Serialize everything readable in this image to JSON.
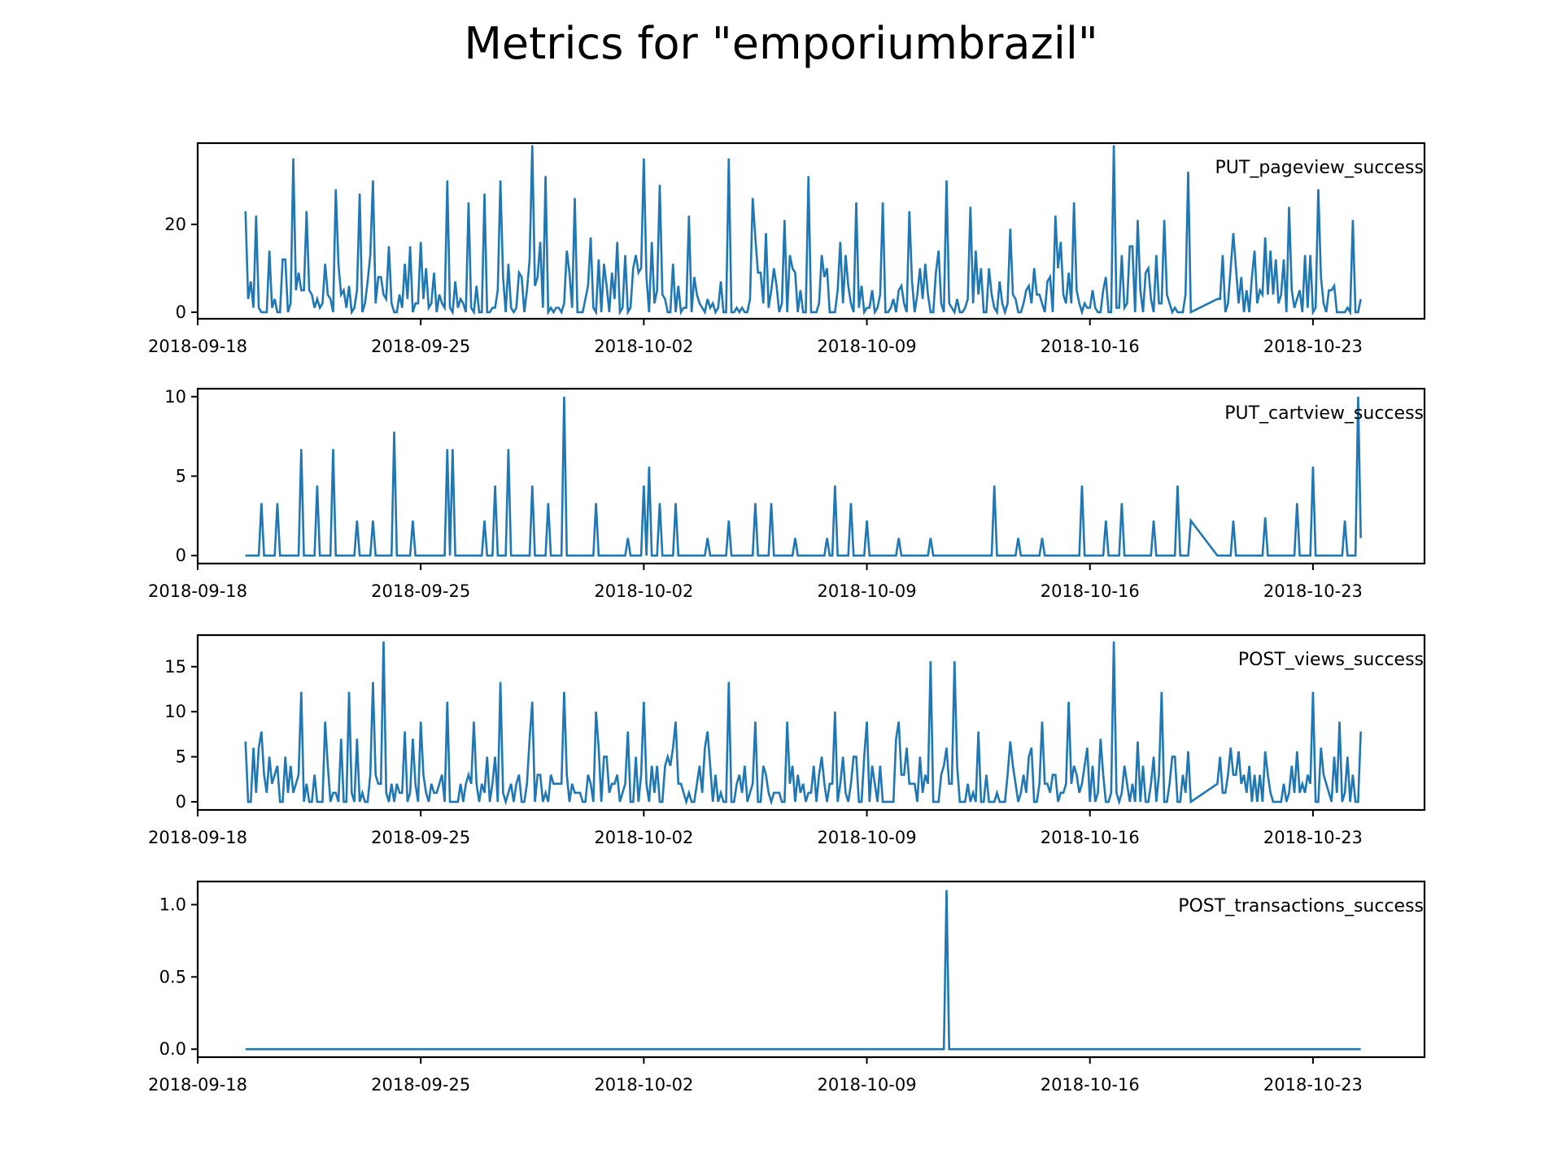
{
  "figure_title": "Metrics for \"emporiumbrazil\"",
  "colors": {
    "line": "#1f77b4",
    "axes": "#000000",
    "background": "#ffffff"
  },
  "chart_data": [
    {
      "type": "line",
      "series_label": "PUT_pageview_success",
      "x_start": "2018-09-19T12:00",
      "x_end": "2018-10-24T12:00",
      "gap": [
        "2018-10-19T04:00",
        "2018-10-20T00:00"
      ],
      "xlim": [
        "2018-09-18T00:00",
        "2018-10-26T12:00"
      ],
      "ylim": [
        -1.5,
        38.5
      ],
      "yticks": [
        0,
        20
      ],
      "xticks": [
        "2018-09-18",
        "2018-09-25",
        "2018-10-02",
        "2018-10-09",
        "2018-10-16",
        "2018-10-23"
      ],
      "pattern": "dense",
      "baseline": 0,
      "typical_max": 12,
      "peaks": [
        [
          "2018-09-19T12:00",
          23
        ],
        [
          "2018-09-19T20:00",
          22
        ],
        [
          "2018-09-21T00:00",
          35
        ],
        [
          "2018-09-21T10:00",
          23
        ],
        [
          "2018-09-22T08:00",
          28
        ],
        [
          "2018-09-23T02:00",
          27
        ],
        [
          "2018-09-23T12:00",
          30
        ],
        [
          "2018-09-24T16:00",
          15
        ],
        [
          "2018-09-25T00:00",
          16
        ],
        [
          "2018-09-25T20:00",
          30
        ],
        [
          "2018-09-26T12:00",
          25
        ],
        [
          "2018-09-27T00:00",
          27
        ],
        [
          "2018-09-27T12:00",
          30
        ],
        [
          "2018-09-28T12:00",
          38
        ],
        [
          "2018-09-28T22:00",
          31
        ],
        [
          "2018-09-29T20:00",
          26
        ],
        [
          "2018-10-01T04:00",
          16
        ],
        [
          "2018-10-02T00:00",
          35
        ],
        [
          "2018-10-02T12:00",
          29
        ],
        [
          "2018-10-03T10:00",
          22
        ],
        [
          "2018-10-04T16:00",
          35
        ],
        [
          "2018-10-05T10:00",
          26
        ],
        [
          "2018-10-06T10:00",
          21
        ],
        [
          "2018-10-07T04:00",
          31
        ],
        [
          "2018-10-08T16:00",
          25
        ],
        [
          "2018-10-09T12:00",
          25
        ],
        [
          "2018-10-10T08:00",
          23
        ],
        [
          "2018-10-11T12:00",
          30
        ],
        [
          "2018-10-12T06:00",
          24
        ],
        [
          "2018-10-13T12:00",
          19
        ],
        [
          "2018-10-14T22:00",
          22
        ],
        [
          "2018-10-15T12:00",
          25
        ],
        [
          "2018-10-16T18:00",
          38
        ],
        [
          "2018-10-17T12:00",
          21
        ],
        [
          "2018-10-18T08:00",
          21
        ],
        [
          "2018-10-19T02:00",
          32
        ],
        [
          "2018-10-20T12:00",
          18
        ],
        [
          "2018-10-21T12:00",
          17
        ],
        [
          "2018-10-22T06:00",
          24
        ],
        [
          "2018-10-23T04:00",
          28
        ],
        [
          "2018-10-24T06:00",
          21
        ]
      ]
    },
    {
      "type": "line",
      "series_label": "PUT_cartview_success",
      "x_start": "2018-09-19T12:00",
      "x_end": "2018-10-24T12:00",
      "gap": [
        "2018-10-19T04:00",
        "2018-10-20T00:00"
      ],
      "xlim": [
        "2018-09-18T00:00",
        "2018-10-26T12:00"
      ],
      "ylim": [
        -0.5,
        10.5
      ],
      "yticks": [
        0,
        5,
        10
      ],
      "xticks": [
        "2018-09-18",
        "2018-09-25",
        "2018-10-02",
        "2018-10-09",
        "2018-10-16",
        "2018-10-23"
      ],
      "pattern": "spikes",
      "baseline": 0,
      "peaks": [
        [
          "2018-09-20T00:00",
          3.3
        ],
        [
          "2018-09-20T12:00",
          3.3
        ],
        [
          "2018-09-21T06:00",
          6.7
        ],
        [
          "2018-09-21T18:00",
          4.4
        ],
        [
          "2018-09-22T06:00",
          6.7
        ],
        [
          "2018-09-23T00:00",
          2.2
        ],
        [
          "2018-09-23T12:00",
          2.2
        ],
        [
          "2018-09-24T04:00",
          7.8
        ],
        [
          "2018-09-24T18:00",
          2.2
        ],
        [
          "2018-09-25T20:00",
          6.7
        ],
        [
          "2018-09-26T00:00",
          6.7
        ],
        [
          "2018-09-27T00:00",
          2.2
        ],
        [
          "2018-09-27T08:00",
          4.4
        ],
        [
          "2018-09-27T18:00",
          6.7
        ],
        [
          "2018-09-28T12:00",
          4.4
        ],
        [
          "2018-09-29T00:00",
          3.3
        ],
        [
          "2018-09-29T12:00",
          10
        ],
        [
          "2018-09-30T12:00",
          3.3
        ],
        [
          "2018-10-01T12:00",
          1.1
        ],
        [
          "2018-10-02T00:00",
          4.4
        ],
        [
          "2018-10-02T04:00",
          5.6
        ],
        [
          "2018-10-02T12:00",
          3.3
        ],
        [
          "2018-10-03T00:00",
          3.3
        ],
        [
          "2018-10-04T00:00",
          1.1
        ],
        [
          "2018-10-04T16:00",
          2.2
        ],
        [
          "2018-10-05T12:00",
          3.3
        ],
        [
          "2018-10-06T00:00",
          3.3
        ],
        [
          "2018-10-06T18:00",
          1.1
        ],
        [
          "2018-10-07T18:00",
          1.1
        ],
        [
          "2018-10-08T00:00",
          4.4
        ],
        [
          "2018-10-08T12:00",
          3.3
        ],
        [
          "2018-10-09T00:00",
          2.2
        ],
        [
          "2018-10-10T00:00",
          1.1
        ],
        [
          "2018-10-11T00:00",
          1.1
        ],
        [
          "2018-10-13T00:00",
          4.4
        ],
        [
          "2018-10-13T18:00",
          1.1
        ],
        [
          "2018-10-14T12:00",
          1.1
        ],
        [
          "2018-10-15T18:00",
          4.4
        ],
        [
          "2018-10-16T12:00",
          2.2
        ],
        [
          "2018-10-17T00:00",
          3.3
        ],
        [
          "2018-10-18T00:00",
          2.2
        ],
        [
          "2018-10-18T18:00",
          4.4
        ],
        [
          "2018-10-19T04:00",
          2.2
        ],
        [
          "2018-10-20T12:00",
          2.2
        ],
        [
          "2018-10-21T12:00",
          2.4
        ],
        [
          "2018-10-22T12:00",
          3.3
        ],
        [
          "2018-10-23T00:00",
          5.6
        ],
        [
          "2018-10-24T00:00",
          2.2
        ],
        [
          "2018-10-24T10:00",
          10
        ],
        [
          "2018-10-24T12:00",
          1.1
        ]
      ]
    },
    {
      "type": "line",
      "series_label": "POST_views_success",
      "x_start": "2018-09-19T12:00",
      "x_end": "2018-10-24T12:00",
      "gap": [
        "2018-10-19T04:00",
        "2018-10-20T00:00"
      ],
      "xlim": [
        "2018-09-18T00:00",
        "2018-10-26T12:00"
      ],
      "ylim": [
        -0.9,
        18.5
      ],
      "yticks": [
        0,
        5,
        10,
        15
      ],
      "xticks": [
        "2018-09-18",
        "2018-09-25",
        "2018-10-02",
        "2018-10-09",
        "2018-10-16",
        "2018-10-23"
      ],
      "pattern": "dense",
      "baseline": 0,
      "typical_max": 5,
      "peaks": [
        [
          "2018-09-19T12:00",
          6.7
        ],
        [
          "2018-09-20T00:00",
          7.8
        ],
        [
          "2018-09-21T06:00",
          12.2
        ],
        [
          "2018-09-22T00:00",
          8.9
        ],
        [
          "2018-09-22T18:00",
          12.2
        ],
        [
          "2018-09-23T12:00",
          13.3
        ],
        [
          "2018-09-23T20:00",
          17.8
        ],
        [
          "2018-09-24T12:00",
          7.8
        ],
        [
          "2018-09-25T00:00",
          8.9
        ],
        [
          "2018-09-25T20:00",
          11.1
        ],
        [
          "2018-09-26T16:00",
          8.9
        ],
        [
          "2018-09-27T12:00",
          13.3
        ],
        [
          "2018-09-28T12:00",
          11.1
        ],
        [
          "2018-09-29T12:00",
          12.2
        ],
        [
          "2018-09-30T12:00",
          10
        ],
        [
          "2018-10-01T12:00",
          7.8
        ],
        [
          "2018-10-02T00:00",
          11.1
        ],
        [
          "2018-10-03T00:00",
          8.9
        ],
        [
          "2018-10-04T00:00",
          7.8
        ],
        [
          "2018-10-04T16:00",
          13.3
        ],
        [
          "2018-10-05T12:00",
          8.9
        ],
        [
          "2018-10-06T12:00",
          8.9
        ],
        [
          "2018-10-08T00:00",
          10
        ],
        [
          "2018-10-09T00:00",
          8.9
        ],
        [
          "2018-10-10T00:00",
          8.9
        ],
        [
          "2018-10-11T00:00",
          15.6
        ],
        [
          "2018-10-11T18:00",
          15.6
        ],
        [
          "2018-10-12T12:00",
          7.8
        ],
        [
          "2018-10-13T12:00",
          6.7
        ],
        [
          "2018-10-14T12:00",
          8.9
        ],
        [
          "2018-10-15T08:00",
          11.1
        ],
        [
          "2018-10-16T18:00",
          17.8
        ],
        [
          "2018-10-17T12:00",
          6.7
        ],
        [
          "2018-10-18T06:00",
          12.2
        ],
        [
          "2018-10-19T02:00",
          5.6
        ],
        [
          "2018-10-20T16:00",
          5.6
        ],
        [
          "2018-10-21T12:00",
          5.6
        ],
        [
          "2018-10-22T12:00",
          5.6
        ],
        [
          "2018-10-23T00:00",
          12.2
        ],
        [
          "2018-10-23T20:00",
          8.9
        ],
        [
          "2018-10-24T12:00",
          7.8
        ]
      ]
    },
    {
      "type": "line",
      "series_label": "POST_transactions_success",
      "x_start": "2018-09-19T12:00",
      "x_end": "2018-10-24T12:00",
      "gap": null,
      "xlim": [
        "2018-09-18T00:00",
        "2018-10-26T12:00"
      ],
      "ylim": [
        -0.055,
        1.16
      ],
      "yticks": [
        0.0,
        0.5,
        1.0
      ],
      "ytick_labels": [
        "0.0",
        "0.5",
        "1.0"
      ],
      "xticks": [
        "2018-09-18",
        "2018-09-25",
        "2018-10-02",
        "2018-10-09",
        "2018-10-16",
        "2018-10-23"
      ],
      "pattern": "spikes",
      "baseline": 0,
      "peaks": [
        [
          "2018-10-11T12:00",
          1.1
        ]
      ]
    }
  ]
}
